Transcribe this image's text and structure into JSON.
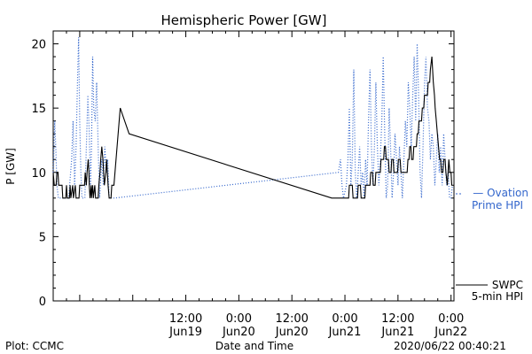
{
  "chart_data": {
    "type": "line",
    "title": "Hemispheric Power [GW]",
    "xlabel": "Date and Time",
    "ylabel": "P [GW]",
    "ylim": [
      0,
      21
    ],
    "yticks": [
      0,
      5,
      10,
      15,
      20
    ],
    "xlim": [
      "2020-06-18T06:00",
      "2020-06-22T00:40"
    ],
    "xticks": [
      {
        "x": "2020-06-19T12:00",
        "time": "12:00",
        "date": "Jun19"
      },
      {
        "x": "2020-06-20T00:00",
        "time": "0:00",
        "date": "Jun20"
      },
      {
        "x": "2020-06-20T12:00",
        "time": "12:00",
        "date": "Jun20"
      },
      {
        "x": "2020-06-21T00:00",
        "time": "0:00",
        "date": "Jun21"
      },
      {
        "x": "2020-06-21T12:00",
        "time": "12:00",
        "date": "Jun21"
      },
      {
        "x": "2020-06-22T00:00",
        "time": "0:00",
        "date": "Jun22"
      }
    ],
    "series": [
      {
        "name": "SWPC 5-min HPI",
        "legend_lines": [
          "SWPC",
          "5-min HPI"
        ],
        "color": "#000000",
        "style": "solid",
        "points": [
          [
            "2020-06-18T06:00",
            10
          ],
          [
            "2020-06-18T06:15",
            9
          ],
          [
            "2020-06-18T06:40",
            9
          ],
          [
            "2020-06-18T06:50",
            10
          ],
          [
            "2020-06-18T07:05",
            10
          ],
          [
            "2020-06-18T07:15",
            9
          ],
          [
            "2020-06-18T08:00",
            9
          ],
          [
            "2020-06-18T08:10",
            8
          ],
          [
            "2020-06-18T08:50",
            8
          ],
          [
            "2020-06-18T09:00",
            9
          ],
          [
            "2020-06-18T09:10",
            8
          ],
          [
            "2020-06-18T09:40",
            8
          ],
          [
            "2020-06-18T09:50",
            9
          ],
          [
            "2020-06-18T10:00",
            8
          ],
          [
            "2020-06-18T10:25",
            9
          ],
          [
            "2020-06-18T10:35",
            8
          ],
          [
            "2020-06-18T11:00",
            9
          ],
          [
            "2020-06-18T11:10",
            8
          ],
          [
            "2020-06-18T11:50",
            8
          ],
          [
            "2020-06-18T12:00",
            9
          ],
          [
            "2020-06-18T13:05",
            9
          ],
          [
            "2020-06-18T13:15",
            10
          ],
          [
            "2020-06-18T13:30",
            9
          ],
          [
            "2020-06-18T13:40",
            10
          ],
          [
            "2020-06-18T13:55",
            11
          ],
          [
            "2020-06-18T14:05",
            10
          ],
          [
            "2020-06-18T14:10",
            9
          ],
          [
            "2020-06-18T14:20",
            8
          ],
          [
            "2020-06-18T14:35",
            9
          ],
          [
            "2020-06-18T14:40",
            8
          ],
          [
            "2020-06-18T14:55",
            9
          ],
          [
            "2020-06-18T15:05",
            8
          ],
          [
            "2020-06-18T15:25",
            9
          ],
          [
            "2020-06-18T15:35",
            8
          ],
          [
            "2020-06-18T16:10",
            8
          ],
          [
            "2020-06-18T16:20",
            9
          ],
          [
            "2020-06-18T16:35",
            10
          ],
          [
            "2020-06-18T16:45",
            11
          ],
          [
            "2020-06-18T17:00",
            12
          ],
          [
            "2020-06-18T17:15",
            11
          ],
          [
            "2020-06-18T17:25",
            10
          ],
          [
            "2020-06-18T17:35",
            9
          ],
          [
            "2020-06-18T17:55",
            10
          ],
          [
            "2020-06-18T18:05",
            11
          ],
          [
            "2020-06-18T18:15",
            10
          ],
          [
            "2020-06-18T18:25",
            9
          ],
          [
            "2020-06-18T18:40",
            8
          ],
          [
            "2020-06-18T19:05",
            8
          ],
          [
            "2020-06-18T19:15",
            9
          ],
          [
            "2020-06-18T19:45",
            9
          ],
          [
            "2020-06-18T21:10",
            15
          ],
          [
            "2020-06-18T23:10",
            13
          ],
          [
            "2020-06-20T21:00",
            8
          ],
          [
            "2020-06-21T00:50",
            8
          ],
          [
            "2020-06-21T01:00",
            9
          ],
          [
            "2020-06-21T01:40",
            9
          ],
          [
            "2020-06-21T01:50",
            8
          ],
          [
            "2020-06-21T02:50",
            8
          ],
          [
            "2020-06-21T03:00",
            9
          ],
          [
            "2020-06-21T03:30",
            9
          ],
          [
            "2020-06-21T03:40",
            8
          ],
          [
            "2020-06-21T04:30",
            8
          ],
          [
            "2020-06-21T04:40",
            9
          ],
          [
            "2020-06-21T05:40",
            9
          ],
          [
            "2020-06-21T05:50",
            10
          ],
          [
            "2020-06-21T06:15",
            10
          ],
          [
            "2020-06-21T06:25",
            9
          ],
          [
            "2020-06-21T06:50",
            9
          ],
          [
            "2020-06-21T07:00",
            10
          ],
          [
            "2020-06-21T08:00",
            10
          ],
          [
            "2020-06-21T08:10",
            11
          ],
          [
            "2020-06-21T08:45",
            11
          ],
          [
            "2020-06-21T08:55",
            12
          ],
          [
            "2020-06-21T09:10",
            12
          ],
          [
            "2020-06-21T09:20",
            11
          ],
          [
            "2020-06-21T09:50",
            11
          ],
          [
            "2020-06-21T10:00",
            10
          ],
          [
            "2020-06-21T10:25",
            10
          ],
          [
            "2020-06-21T10:35",
            11
          ],
          [
            "2020-06-21T10:55",
            11
          ],
          [
            "2020-06-21T11:05",
            10
          ],
          [
            "2020-06-21T11:55",
            10
          ],
          [
            "2020-06-21T12:05",
            11
          ],
          [
            "2020-06-21T12:30",
            11
          ],
          [
            "2020-06-21T12:40",
            10
          ],
          [
            "2020-06-21T14:05",
            10
          ],
          [
            "2020-06-21T14:15",
            11
          ],
          [
            "2020-06-21T14:30",
            11
          ],
          [
            "2020-06-21T14:40",
            12
          ],
          [
            "2020-06-21T14:55",
            12
          ],
          [
            "2020-06-21T15:05",
            11
          ],
          [
            "2020-06-21T15:25",
            11
          ],
          [
            "2020-06-21T15:35",
            12
          ],
          [
            "2020-06-21T16:10",
            12
          ],
          [
            "2020-06-21T16:20",
            13
          ],
          [
            "2020-06-21T16:35",
            13
          ],
          [
            "2020-06-21T16:45",
            14
          ],
          [
            "2020-06-21T17:20",
            14
          ],
          [
            "2020-06-21T17:30",
            15
          ],
          [
            "2020-06-21T17:50",
            15
          ],
          [
            "2020-06-21T18:00",
            16
          ],
          [
            "2020-06-21T18:40",
            16
          ],
          [
            "2020-06-21T18:50",
            17
          ],
          [
            "2020-06-21T19:10",
            17
          ],
          [
            "2020-06-21T19:20",
            18
          ],
          [
            "2020-06-21T19:40",
            19
          ],
          [
            "2020-06-21T19:50",
            18
          ],
          [
            "2020-06-21T20:00",
            17
          ],
          [
            "2020-06-21T20:15",
            16
          ],
          [
            "2020-06-21T20:25",
            15
          ],
          [
            "2020-06-21T20:40",
            14
          ],
          [
            "2020-06-21T20:55",
            13
          ],
          [
            "2020-06-21T21:10",
            12
          ],
          [
            "2020-06-21T21:25",
            11
          ],
          [
            "2020-06-21T21:40",
            11
          ],
          [
            "2020-06-21T21:50",
            10
          ],
          [
            "2020-06-21T22:10",
            10
          ],
          [
            "2020-06-21T22:20",
            11
          ],
          [
            "2020-06-21T22:40",
            11
          ],
          [
            "2020-06-21T22:50",
            10
          ],
          [
            "2020-06-21T23:10",
            9
          ],
          [
            "2020-06-21T23:30",
            11
          ],
          [
            "2020-06-21T23:45",
            10
          ],
          [
            "2020-06-22T00:00",
            10
          ],
          [
            "2020-06-22T00:10",
            9
          ]
        ]
      },
      {
        "name": "Ovation Prime HPI",
        "legend_lines": [
          "— Ovation",
          "Prime HPI"
        ],
        "color": "#3366cc",
        "style": "dotted",
        "points": [
          [
            "2020-06-18T06:00",
            10
          ],
          [
            "2020-06-18T06:20",
            14
          ],
          [
            "2020-06-18T06:35",
            12
          ],
          [
            "2020-06-18T06:50",
            9
          ],
          [
            "2020-06-18T07:10",
            8
          ],
          [
            "2020-06-18T09:30",
            8
          ],
          [
            "2020-06-18T10:10",
            11
          ],
          [
            "2020-06-18T10:30",
            14
          ],
          [
            "2020-06-18T10:50",
            9
          ],
          [
            "2020-06-18T11:10",
            12
          ],
          [
            "2020-06-18T11:30",
            17
          ],
          [
            "2020-06-18T11:45",
            20.5
          ],
          [
            "2020-06-18T12:00",
            14
          ],
          [
            "2020-06-18T12:15",
            10
          ],
          [
            "2020-06-18T12:30",
            8
          ],
          [
            "2020-06-18T13:10",
            8
          ],
          [
            "2020-06-18T13:30",
            12
          ],
          [
            "2020-06-18T13:50",
            16
          ],
          [
            "2020-06-18T14:10",
            13
          ],
          [
            "2020-06-18T14:25",
            9
          ],
          [
            "2020-06-18T14:40",
            12
          ],
          [
            "2020-06-18T14:55",
            19
          ],
          [
            "2020-06-18T15:10",
            15
          ],
          [
            "2020-06-18T15:30",
            14
          ],
          [
            "2020-06-18T15:50",
            17
          ],
          [
            "2020-06-18T16:10",
            12
          ],
          [
            "2020-06-18T16:30",
            8
          ],
          [
            "2020-06-18T17:00",
            11
          ],
          [
            "2020-06-18T17:20",
            9
          ],
          [
            "2020-06-18T17:40",
            12
          ],
          [
            "2020-06-18T18:00",
            10
          ],
          [
            "2020-06-18T18:20",
            11
          ],
          [
            "2020-06-18T18:40",
            8
          ],
          [
            "2020-06-18T19:50",
            8
          ],
          [
            "2020-06-20T22:30",
            10
          ],
          [
            "2020-06-20T23:00",
            11
          ],
          [
            "2020-06-20T23:20",
            9
          ],
          [
            "2020-06-20T23:40",
            8
          ],
          [
            "2020-06-21T00:20",
            9
          ],
          [
            "2020-06-21T00:40",
            11
          ],
          [
            "2020-06-21T01:00",
            15
          ],
          [
            "2020-06-21T01:20",
            9
          ],
          [
            "2020-06-21T01:40",
            11
          ],
          [
            "2020-06-21T02:00",
            18
          ],
          [
            "2020-06-21T02:20",
            10
          ],
          [
            "2020-06-21T02:40",
            8
          ],
          [
            "2020-06-21T03:00",
            10
          ],
          [
            "2020-06-21T03:20",
            12
          ],
          [
            "2020-06-21T03:40",
            9
          ],
          [
            "2020-06-21T04:00",
            10
          ],
          [
            "2020-06-21T04:20",
            8
          ],
          [
            "2020-06-21T04:40",
            11
          ],
          [
            "2020-06-21T05:00",
            9
          ],
          [
            "2020-06-21T05:20",
            14
          ],
          [
            "2020-06-21T05:40",
            18
          ],
          [
            "2020-06-21T06:00",
            12
          ],
          [
            "2020-06-21T06:20",
            9
          ],
          [
            "2020-06-21T06:40",
            12
          ],
          [
            "2020-06-21T07:00",
            17
          ],
          [
            "2020-06-21T07:20",
            12
          ],
          [
            "2020-06-21T07:40",
            9
          ],
          [
            "2020-06-21T08:00",
            11
          ],
          [
            "2020-06-21T08:20",
            14
          ],
          [
            "2020-06-21T08:40",
            19
          ],
          [
            "2020-06-21T09:00",
            13
          ],
          [
            "2020-06-21T09:20",
            8
          ],
          [
            "2020-06-21T09:40",
            9
          ],
          [
            "2020-06-21T10:00",
            15
          ],
          [
            "2020-06-21T10:20",
            12
          ],
          [
            "2020-06-21T10:40",
            8
          ],
          [
            "2020-06-21T11:00",
            10
          ],
          [
            "2020-06-21T11:20",
            13
          ],
          [
            "2020-06-21T11:40",
            11
          ],
          [
            "2020-06-21T12:00",
            9
          ],
          [
            "2020-06-21T12:20",
            12
          ],
          [
            "2020-06-21T12:40",
            10
          ],
          [
            "2020-06-21T13:00",
            8
          ],
          [
            "2020-06-21T13:20",
            11
          ],
          [
            "2020-06-21T13:40",
            14
          ],
          [
            "2020-06-21T14:00",
            12
          ],
          [
            "2020-06-21T14:20",
            17
          ],
          [
            "2020-06-21T14:40",
            15
          ],
          [
            "2020-06-21T15:00",
            12
          ],
          [
            "2020-06-21T15:20",
            16
          ],
          [
            "2020-06-21T15:40",
            19
          ],
          [
            "2020-06-21T16:00",
            14
          ],
          [
            "2020-06-21T16:20",
            20
          ],
          [
            "2020-06-21T16:40",
            16
          ],
          [
            "2020-06-21T17:00",
            10
          ],
          [
            "2020-06-21T17:20",
            8
          ],
          [
            "2020-06-21T17:40",
            12
          ],
          [
            "2020-06-21T18:00",
            17
          ],
          [
            "2020-06-21T18:20",
            19
          ],
          [
            "2020-06-21T18:40",
            15
          ],
          [
            "2020-06-21T19:00",
            14
          ],
          [
            "2020-06-21T19:20",
            11
          ],
          [
            "2020-06-21T19:40",
            13
          ],
          [
            "2020-06-21T20:00",
            12
          ],
          [
            "2020-06-21T20:20",
            9
          ],
          [
            "2020-06-21T20:40",
            11
          ],
          [
            "2020-06-21T21:00",
            13
          ],
          [
            "2020-06-21T21:20",
            10
          ],
          [
            "2020-06-21T21:40",
            12
          ],
          [
            "2020-06-21T22:00",
            9
          ],
          [
            "2020-06-21T22:20",
            13
          ],
          [
            "2020-06-21T22:40",
            11
          ],
          [
            "2020-06-21T23:00",
            9
          ],
          [
            "2020-06-21T23:20",
            10
          ],
          [
            "2020-06-21T23:40",
            8
          ],
          [
            "2020-06-22T00:00",
            8
          ],
          [
            "2020-06-22T00:20",
            9
          ]
        ]
      }
    ],
    "grid": false,
    "legend_position": "right"
  },
  "footer": {
    "plot_credit": "Plot: CCMC",
    "timestamp": "2020/06/22 00:40:21"
  }
}
